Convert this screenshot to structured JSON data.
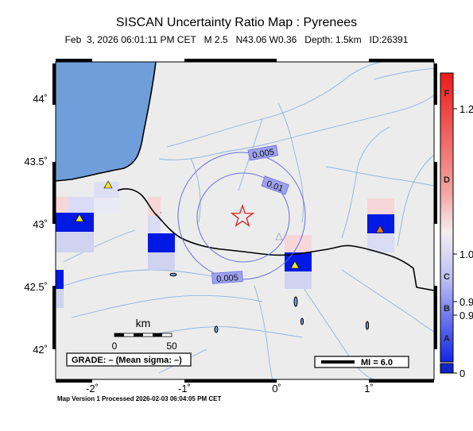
{
  "title": "SISCAN Uncertainty Ratio Map : Pyrenees",
  "subtitle": "Feb  3, 2026 06:01:11 PM CET   M 2.5   N43.06 W0.36   Depth: 1.5km   ID:26391",
  "footer": "Map Version 1 Processed 2026-02-03 06:04:05 PM CET",
  "axes": {
    "lat_ticks": [
      "44˚",
      "43.5˚",
      "43˚",
      "42.5˚",
      "42˚"
    ],
    "lon_ticks": [
      "-2˚",
      "-1˚",
      "0˚",
      "1˚"
    ]
  },
  "contours": [
    "0.005",
    "0.01",
    "0.005"
  ],
  "scale_bar": {
    "unit": "km",
    "ticks": [
      "0",
      "50"
    ]
  },
  "grade_box": "GRADE: – (Mean sigma: –)",
  "mi_box": "MI = 6.0",
  "colorbar": {
    "letters": [
      "F",
      "D",
      "C",
      "B",
      "A"
    ],
    "values": [
      "1.2",
      "1.0",
      "0.9",
      "0.9",
      "0"
    ]
  },
  "epicenter": {
    "lat": 43.06,
    "lon": -0.36,
    "symbol": "star"
  },
  "stations": [
    {
      "lat": 43.3,
      "lon": -1.82,
      "color": "#f2e51f"
    },
    {
      "lat": 43.02,
      "lon": -2.12,
      "color": "#f2e51f"
    },
    {
      "lat": 42.68,
      "lon": 0.2,
      "color": "#f2e51f"
    },
    {
      "lat": 42.96,
      "lon": 1.12,
      "color": "#e8732a"
    }
  ],
  "colors": {
    "land": "#ececec",
    "sea": "#6f9edb",
    "river": "#8fb3e0",
    "contour": "#6a6ee0",
    "cell_strong": "#0019e3",
    "cell_pale": "#cfd3f0",
    "cell_pink": "#f6d6d8",
    "star": "#e02020"
  }
}
